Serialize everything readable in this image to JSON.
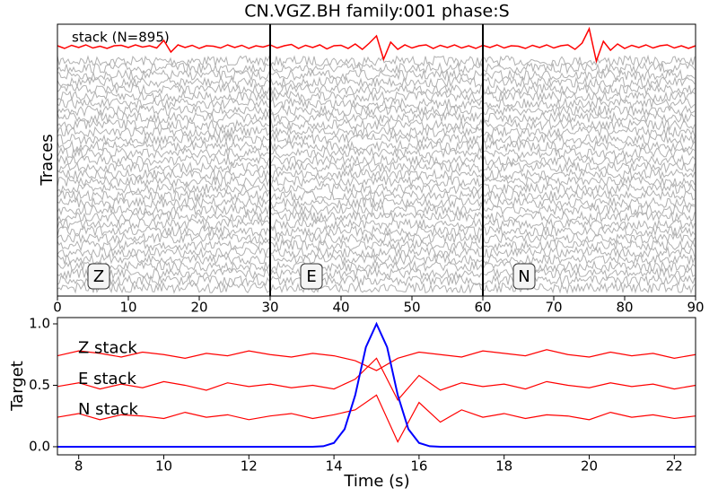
{
  "chart_data": [
    {
      "type": "line",
      "title": "CN.VGZ.BH family:001 phase:S",
      "ylabel": "Traces",
      "annotation": "stack (N=895)",
      "components": [
        "Z",
        "E",
        "N"
      ],
      "separators": [
        30,
        60
      ],
      "xlim": [
        0,
        90
      ],
      "xticks": [
        0,
        10,
        20,
        30,
        40,
        50,
        60,
        70,
        80,
        90
      ],
      "series": [
        {
          "color": "#ff0000",
          "x": [
            0,
            1,
            2,
            3,
            4,
            5,
            6,
            7,
            8,
            9,
            10,
            11,
            12,
            13,
            14,
            15,
            16,
            17,
            18,
            19,
            20,
            21,
            22,
            23,
            24,
            25,
            26,
            27,
            28,
            29,
            30,
            31,
            32,
            33,
            34,
            35,
            36,
            37,
            38,
            39,
            40,
            41,
            42,
            43,
            44,
            45,
            46,
            47,
            48,
            49,
            50,
            51,
            52,
            53,
            54,
            55,
            56,
            57,
            58,
            59,
            60,
            61,
            62,
            63,
            64,
            65,
            66,
            67,
            68,
            69,
            70,
            71,
            72,
            73,
            74,
            75,
            76,
            77,
            78,
            79,
            80,
            81,
            82,
            83,
            84,
            85,
            86,
            87,
            88,
            89,
            90
          ],
          "values": [
            0.1,
            -0.2,
            0.15,
            -0.1,
            0.2,
            -0.15,
            0.05,
            -0.2,
            0.1,
            0.15,
            -0.1,
            0.2,
            -0.05,
            0.1,
            -0.15,
            0.7,
            -0.6,
            0.2,
            -0.1,
            0.15,
            -0.2,
            0.1,
            0.05,
            -0.15,
            0.2,
            -0.1,
            0.15,
            -0.2,
            0.1,
            -0.05,
            0.2,
            -0.15,
            0.1,
            0.25,
            -0.2,
            0.15,
            -0.1,
            0.2,
            -0.25,
            0.1,
            0.15,
            -0.2,
            0.3,
            -0.3,
            0.4,
            1.2,
            -1.4,
            0.5,
            -0.3,
            0.2,
            -0.15,
            0.1,
            0.2,
            -0.2,
            0.15,
            -0.1,
            0.2,
            -0.15,
            0.1,
            -0.2,
            0.15,
            -0.1,
            0.2,
            -0.15,
            0.1,
            0.05,
            -0.2,
            0.15,
            -0.1,
            0.2,
            -0.15,
            0.1,
            0.2,
            -0.3,
            0.4,
            2.0,
            -1.6,
            0.6,
            -0.4,
            0.3,
            -0.2,
            0.15,
            -0.1,
            0.2,
            -0.15,
            0.1,
            0.2,
            -0.15,
            0.1,
            -0.2,
            0.1
          ]
        }
      ]
    },
    {
      "type": "line",
      "xlabel": "Time (s)",
      "ylabel": "Target",
      "xlim": [
        7.5,
        22.5
      ],
      "ylim": [
        -0.066,
        1.051
      ],
      "xticks": [
        8,
        10,
        12,
        14,
        16,
        18,
        20,
        22
      ],
      "yticks": [
        {
          "value": 0,
          "label": "0.0"
        },
        {
          "value": 0.5,
          "label": "0.5"
        },
        {
          "value": 1,
          "label": "1.0"
        }
      ],
      "series": [
        {
          "name": "Z stack",
          "color": "#ff0000",
          "x": [
            7.5,
            8,
            8.5,
            9,
            9.5,
            10,
            10.5,
            11,
            11.5,
            12,
            12.5,
            13,
            13.5,
            14,
            14.5,
            15,
            15.5,
            16,
            16.5,
            17,
            17.5,
            18,
            18.5,
            19,
            19.5,
            20,
            20.5,
            21,
            21.5,
            22,
            22.5
          ],
          "values": [
            0.74,
            0.78,
            0.76,
            0.73,
            0.77,
            0.75,
            0.72,
            0.76,
            0.74,
            0.78,
            0.75,
            0.73,
            0.76,
            0.74,
            0.7,
            0.62,
            0.72,
            0.77,
            0.75,
            0.73,
            0.78,
            0.76,
            0.74,
            0.79,
            0.75,
            0.73,
            0.77,
            0.74,
            0.76,
            0.72,
            0.75
          ]
        },
        {
          "name": "E stack",
          "color": "#ff0000",
          "x": [
            7.5,
            8,
            8.5,
            9,
            9.5,
            10,
            10.5,
            11,
            11.5,
            12,
            12.5,
            13,
            13.5,
            14,
            14.5,
            15,
            15.5,
            16,
            16.5,
            17,
            17.5,
            18,
            18.5,
            19,
            19.5,
            20,
            20.5,
            21,
            21.5,
            22,
            22.5
          ],
          "values": [
            0.49,
            0.52,
            0.47,
            0.51,
            0.48,
            0.53,
            0.5,
            0.46,
            0.52,
            0.49,
            0.51,
            0.48,
            0.5,
            0.47,
            0.55,
            0.72,
            0.38,
            0.58,
            0.46,
            0.52,
            0.49,
            0.51,
            0.47,
            0.53,
            0.5,
            0.48,
            0.52,
            0.49,
            0.51,
            0.47,
            0.5
          ]
        },
        {
          "name": "N stack",
          "color": "#ff0000",
          "x": [
            7.5,
            8,
            8.5,
            9,
            9.5,
            10,
            10.5,
            11,
            11.5,
            12,
            12.5,
            13,
            13.5,
            14,
            14.5,
            15,
            15.5,
            16,
            16.5,
            17,
            17.5,
            18,
            18.5,
            19,
            19.5,
            20,
            20.5,
            21,
            21.5,
            22,
            22.5
          ],
          "values": [
            0.24,
            0.27,
            0.22,
            0.26,
            0.25,
            0.23,
            0.28,
            0.24,
            0.26,
            0.22,
            0.25,
            0.27,
            0.23,
            0.26,
            0.3,
            0.42,
            0.04,
            0.36,
            0.2,
            0.3,
            0.24,
            0.27,
            0.23,
            0.26,
            0.25,
            0.22,
            0.28,
            0.24,
            0.26,
            0.23,
            0.25
          ]
        },
        {
          "color": "#0000ff",
          "x": [
            7.5,
            13,
            13.5,
            13.75,
            14,
            14.25,
            14.5,
            14.75,
            15,
            15.25,
            15.5,
            15.75,
            16,
            16.25,
            16.5,
            17,
            22.5
          ],
          "values": [
            0,
            0,
            0,
            0.004,
            0.031,
            0.143,
            0.42,
            0.81,
            1,
            0.81,
            0.42,
            0.143,
            0.031,
            0.004,
            0,
            0,
            0
          ]
        }
      ]
    }
  ]
}
